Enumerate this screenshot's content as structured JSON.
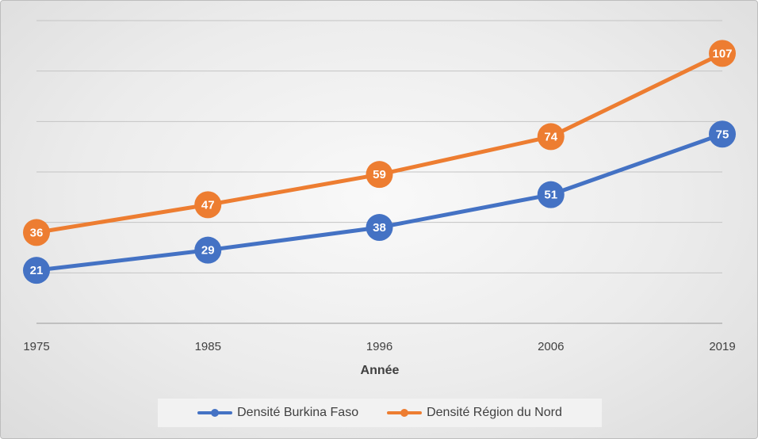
{
  "chart_data": {
    "type": "line",
    "x": [
      "1975",
      "1985",
      "1996",
      "2006",
      "2019"
    ],
    "xlabel": "Année",
    "ylabel": "",
    "ylim": [
      0,
      120
    ],
    "grid": true,
    "y_axis_labels_shown": false,
    "legend_position": "bottom",
    "series": [
      {
        "name": "Densité Burkina Faso",
        "values": [
          21,
          29,
          38,
          51,
          75
        ],
        "color": "#4472C4"
      },
      {
        "name": "Densité Région du Nord",
        "values": [
          36,
          47,
          59,
          74,
          107
        ],
        "color": "#ED7D31"
      }
    ]
  }
}
